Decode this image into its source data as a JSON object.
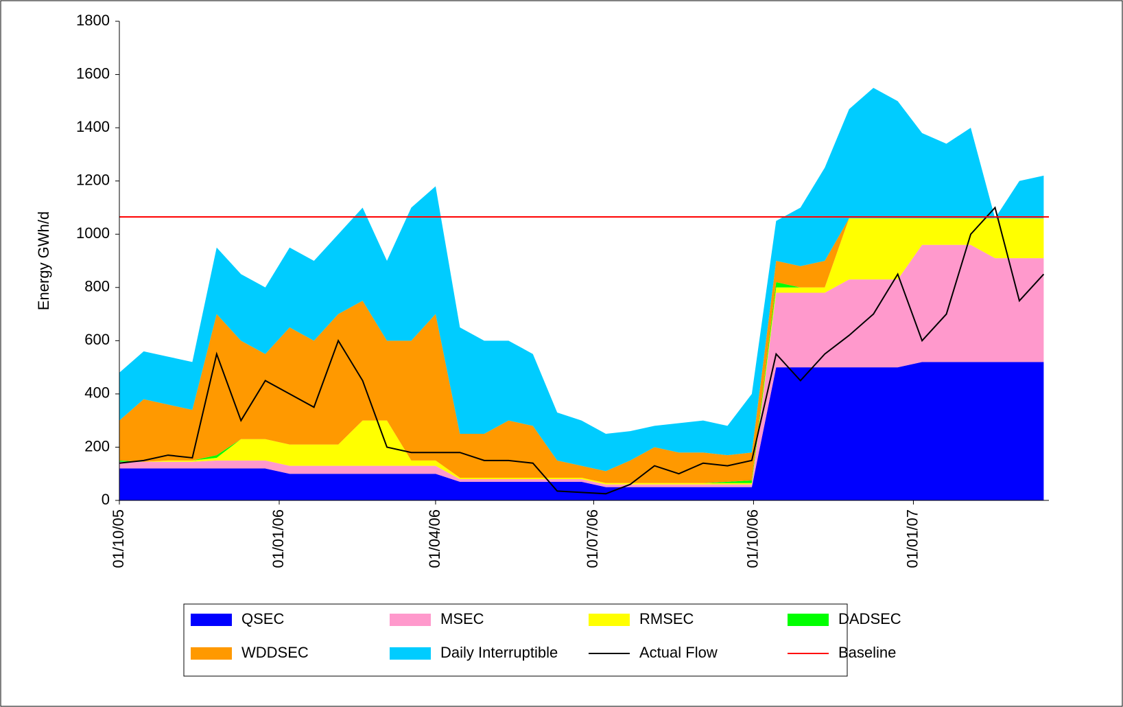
{
  "chart_data": {
    "type": "stacked-area",
    "y_label": "Energy GWh/d",
    "ylim": [
      0,
      1800
    ],
    "yticks": [
      0,
      200,
      400,
      600,
      800,
      1000,
      1200,
      1400,
      1600,
      1800
    ],
    "xlim": [
      "01/10/05",
      "20/03/07"
    ],
    "xticks": [
      "01/10/05",
      "01/01/06",
      "01/04/06",
      "01/07/06",
      "01/10/06",
      "01/01/07"
    ],
    "x": [
      "01/10/05",
      "15/10/05",
      "29/10/05",
      "12/11/05",
      "26/11/05",
      "10/12/05",
      "24/12/05",
      "07/01/06",
      "21/01/06",
      "04/02/06",
      "18/02/06",
      "04/03/06",
      "18/03/06",
      "01/04/06",
      "15/04/06",
      "29/04/06",
      "13/05/06",
      "27/05/06",
      "10/06/06",
      "24/06/06",
      "08/07/06",
      "22/07/06",
      "05/08/06",
      "19/08/06",
      "02/09/06",
      "16/09/06",
      "30/09/06",
      "14/10/06",
      "28/10/06",
      "11/11/06",
      "25/11/06",
      "09/12/06",
      "23/12/06",
      "06/01/07",
      "20/01/07",
      "03/02/07",
      "17/02/07",
      "03/03/07",
      "17/03/07"
    ],
    "series": [
      {
        "name": "QSEC",
        "color": "#0000ff",
        "kind": "area",
        "values": [
          120,
          120,
          120,
          120,
          120,
          120,
          120,
          100,
          100,
          100,
          100,
          100,
          100,
          100,
          70,
          70,
          70,
          70,
          70,
          70,
          50,
          50,
          50,
          50,
          50,
          50,
          50,
          500,
          500,
          500,
          500,
          500,
          500,
          520,
          520,
          520,
          520,
          520,
          520
        ]
      },
      {
        "name": "MSEC",
        "color": "#ff99cc",
        "kind": "area",
        "values": [
          25,
          25,
          25,
          25,
          30,
          30,
          30,
          30,
          30,
          30,
          30,
          30,
          30,
          30,
          10,
          10,
          10,
          10,
          10,
          10,
          10,
          10,
          10,
          10,
          10,
          10,
          10,
          280,
          280,
          280,
          330,
          330,
          330,
          440,
          440,
          440,
          390,
          390,
          390
        ]
      },
      {
        "name": "RMSEC",
        "color": "#ffff00",
        "kind": "area",
        "values": [
          0,
          0,
          5,
          5,
          10,
          80,
          80,
          80,
          80,
          80,
          170,
          170,
          20,
          20,
          5,
          5,
          5,
          5,
          5,
          5,
          5,
          5,
          5,
          5,
          5,
          5,
          5,
          20,
          20,
          20,
          230,
          230,
          230,
          100,
          100,
          100,
          150,
          150,
          150
        ]
      },
      {
        "name": "DADSEC",
        "color": "#00ff00",
        "kind": "area",
        "values": [
          5,
          0,
          0,
          0,
          10,
          0,
          0,
          0,
          0,
          0,
          0,
          0,
          0,
          0,
          0,
          0,
          0,
          0,
          0,
          0,
          0,
          0,
          0,
          0,
          0,
          5,
          10,
          20,
          0,
          0,
          0,
          0,
          0,
          0,
          0,
          0,
          0,
          0,
          0
        ]
      },
      {
        "name": "WDDSEC",
        "color": "#ff9900",
        "kind": "area",
        "values": [
          150,
          235,
          210,
          190,
          530,
          370,
          320,
          440,
          390,
          490,
          450,
          300,
          450,
          550,
          165,
          165,
          215,
          195,
          65,
          45,
          45,
          85,
          135,
          115,
          115,
          100,
          105,
          80,
          80,
          100,
          0,
          0,
          0,
          0,
          0,
          0,
          0,
          0,
          0
        ]
      },
      {
        "name": "Daily Interruptible",
        "color": "#00ccff",
        "kind": "area",
        "values": [
          180,
          180,
          180,
          180,
          250,
          250,
          250,
          300,
          300,
          300,
          350,
          300,
          500,
          480,
          400,
          350,
          300,
          270,
          180,
          170,
          140,
          110,
          80,
          110,
          120,
          110,
          220,
          150,
          220,
          350,
          410,
          490,
          440,
          320,
          280,
          340,
          0,
          140,
          160
        ]
      },
      {
        "name": "Actual Flow",
        "color": "#000000",
        "kind": "line",
        "values": [
          140,
          150,
          170,
          160,
          550,
          300,
          450,
          400,
          350,
          600,
          450,
          200,
          180,
          180,
          180,
          150,
          150,
          140,
          35,
          30,
          25,
          60,
          130,
          100,
          140,
          130,
          150,
          550,
          450,
          550,
          620,
          700,
          850,
          600,
          700,
          1000,
          1100,
          750,
          850
        ]
      },
      {
        "name": "Baseline",
        "color": "#ff0000",
        "kind": "hline",
        "value": 1065
      }
    ]
  }
}
